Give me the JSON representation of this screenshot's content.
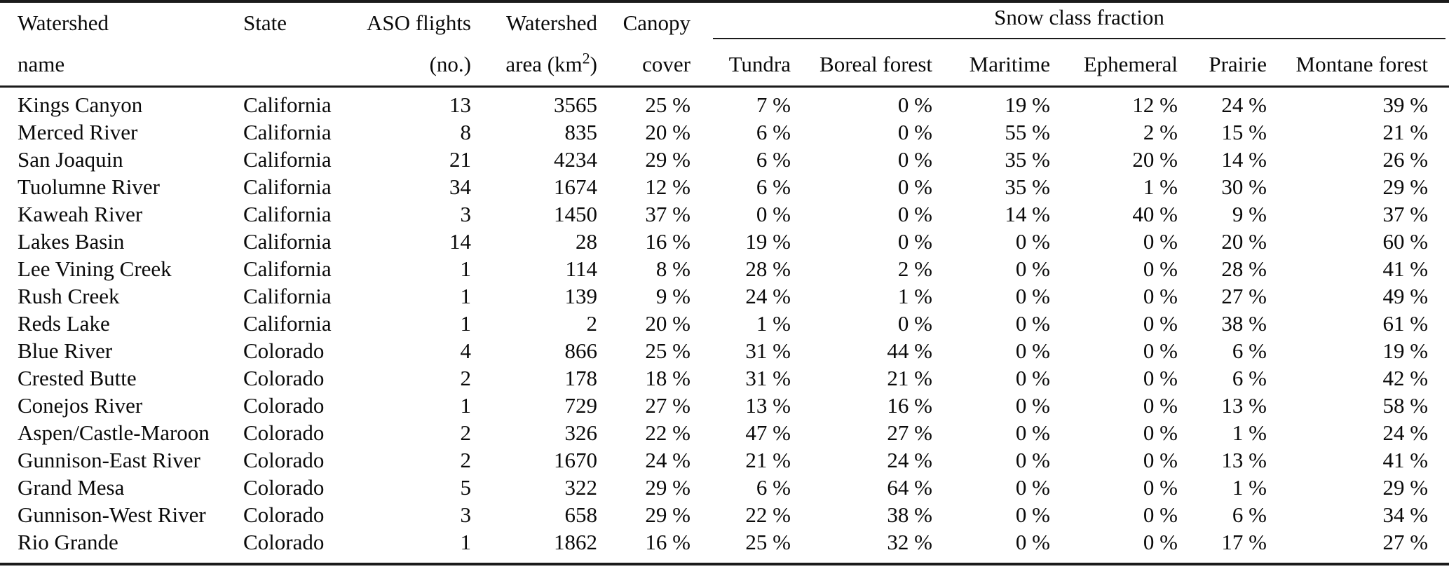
{
  "table": {
    "header": {
      "name": {
        "line1": "Watershed",
        "line2": "name"
      },
      "state": {
        "line1": "State",
        "line2": ""
      },
      "flights": {
        "line1": "ASO flights",
        "line2": "(no.)"
      },
      "area": {
        "line1": "Watershed",
        "line2_pre": "area (km",
        "line2_sup": "2",
        "line2_post": ")"
      },
      "canopy": {
        "line1": "Canopy",
        "line2": "cover"
      },
      "snow_group": "Snow class fraction",
      "snow_cols": [
        "Tundra",
        "Boreal forest",
        "Maritime",
        "Ephemeral",
        "Prairie",
        "Montane forest"
      ]
    },
    "rows": [
      {
        "name": "Kings Canyon",
        "state": "California",
        "flights": "13",
        "area": "3565",
        "canopy": "25 %",
        "tundra": "7 %",
        "boreal": "0 %",
        "maritime": "19 %",
        "ephemeral": "12 %",
        "prairie": "24 %",
        "montane": "39 %"
      },
      {
        "name": "Merced River",
        "state": "California",
        "flights": "8",
        "area": "835",
        "canopy": "20 %",
        "tundra": "6 %",
        "boreal": "0 %",
        "maritime": "55 %",
        "ephemeral": "2 %",
        "prairie": "15 %",
        "montane": "21 %"
      },
      {
        "name": "San Joaquin",
        "state": "California",
        "flights": "21",
        "area": "4234",
        "canopy": "29 %",
        "tundra": "6 %",
        "boreal": "0 %",
        "maritime": "35 %",
        "ephemeral": "20 %",
        "prairie": "14 %",
        "montane": "26 %"
      },
      {
        "name": "Tuolumne River",
        "state": "California",
        "flights": "34",
        "area": "1674",
        "canopy": "12 %",
        "tundra": "6 %",
        "boreal": "0 %",
        "maritime": "35 %",
        "ephemeral": "1 %",
        "prairie": "30 %",
        "montane": "29 %"
      },
      {
        "name": "Kaweah River",
        "state": "California",
        "flights": "3",
        "area": "1450",
        "canopy": "37 %",
        "tundra": "0 %",
        "boreal": "0 %",
        "maritime": "14 %",
        "ephemeral": "40 %",
        "prairie": "9 %",
        "montane": "37 %"
      },
      {
        "name": "Lakes Basin",
        "state": "California",
        "flights": "14",
        "area": "28",
        "canopy": "16 %",
        "tundra": "19 %",
        "boreal": "0 %",
        "maritime": "0 %",
        "ephemeral": "0 %",
        "prairie": "20 %",
        "montane": "60 %"
      },
      {
        "name": "Lee Vining Creek",
        "state": "California",
        "flights": "1",
        "area": "114",
        "canopy": "8 %",
        "tundra": "28 %",
        "boreal": "2 %",
        "maritime": "0 %",
        "ephemeral": "0 %",
        "prairie": "28 %",
        "montane": "41 %"
      },
      {
        "name": "Rush Creek",
        "state": "California",
        "flights": "1",
        "area": "139",
        "canopy": "9 %",
        "tundra": "24 %",
        "boreal": "1 %",
        "maritime": "0 %",
        "ephemeral": "0 %",
        "prairie": "27 %",
        "montane": "49 %"
      },
      {
        "name": "Reds Lake",
        "state": "California",
        "flights": "1",
        "area": "2",
        "canopy": "20 %",
        "tundra": "1 %",
        "boreal": "0 %",
        "maritime": "0 %",
        "ephemeral": "0 %",
        "prairie": "38 %",
        "montane": "61 %"
      },
      {
        "name": "Blue River",
        "state": "Colorado",
        "flights": "4",
        "area": "866",
        "canopy": "25 %",
        "tundra": "31 %",
        "boreal": "44 %",
        "maritime": "0 %",
        "ephemeral": "0 %",
        "prairie": "6 %",
        "montane": "19 %"
      },
      {
        "name": "Crested Butte",
        "state": "Colorado",
        "flights": "2",
        "area": "178",
        "canopy": "18 %",
        "tundra": "31 %",
        "boreal": "21 %",
        "maritime": "0 %",
        "ephemeral": "0 %",
        "prairie": "6 %",
        "montane": "42 %"
      },
      {
        "name": "Conejos River",
        "state": "Colorado",
        "flights": "1",
        "area": "729",
        "canopy": "27 %",
        "tundra": "13 %",
        "boreal": "16 %",
        "maritime": "0 %",
        "ephemeral": "0 %",
        "prairie": "13 %",
        "montane": "58 %"
      },
      {
        "name": "Aspen/Castle-Maroon",
        "state": "Colorado",
        "flights": "2",
        "area": "326",
        "canopy": "22 %",
        "tundra": "47 %",
        "boreal": "27 %",
        "maritime": "0 %",
        "ephemeral": "0 %",
        "prairie": "1 %",
        "montane": "24 %"
      },
      {
        "name": "Gunnison-East River",
        "state": "Colorado",
        "flights": "2",
        "area": "1670",
        "canopy": "24 %",
        "tundra": "21 %",
        "boreal": "24 %",
        "maritime": "0 %",
        "ephemeral": "0 %",
        "prairie": "13 %",
        "montane": "41 %"
      },
      {
        "name": "Grand Mesa",
        "state": "Colorado",
        "flights": "5",
        "area": "322",
        "canopy": "29 %",
        "tundra": "6 %",
        "boreal": "64 %",
        "maritime": "0 %",
        "ephemeral": "0 %",
        "prairie": "1 %",
        "montane": "29 %"
      },
      {
        "name": "Gunnison-West River",
        "state": "Colorado",
        "flights": "3",
        "area": "658",
        "canopy": "29 %",
        "tundra": "22 %",
        "boreal": "38 %",
        "maritime": "0 %",
        "ephemeral": "0 %",
        "prairie": "6 %",
        "montane": "34 %"
      },
      {
        "name": "Rio Grande",
        "state": "Colorado",
        "flights": "1",
        "area": "1862",
        "canopy": "16 %",
        "tundra": "25 %",
        "boreal": "32 %",
        "maritime": "0 %",
        "ephemeral": "0 %",
        "prairie": "17 %",
        "montane": "27 %"
      }
    ]
  }
}
